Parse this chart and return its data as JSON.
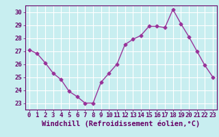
{
  "x": [
    0,
    1,
    2,
    3,
    4,
    5,
    6,
    7,
    8,
    9,
    10,
    11,
    12,
    13,
    14,
    15,
    16,
    17,
    18,
    19,
    20,
    21,
    22,
    23
  ],
  "y": [
    27.1,
    26.8,
    26.1,
    25.3,
    24.8,
    23.9,
    23.5,
    23.0,
    23.0,
    24.6,
    25.3,
    26.0,
    27.5,
    27.9,
    28.2,
    28.9,
    28.9,
    28.8,
    30.2,
    29.1,
    28.1,
    27.0,
    25.9,
    25.0
  ],
  "line_color": "#993399",
  "marker": "D",
  "marker_size": 2.5,
  "xlabel": "Windchill (Refroidissement éolien,°C)",
  "xlabel_fontsize": 7.5,
  "ylabel_ticks": [
    23,
    24,
    25,
    26,
    27,
    28,
    29,
    30
  ],
  "ylim": [
    22.5,
    30.5
  ],
  "xlim": [
    -0.5,
    23.5
  ],
  "xtick_labels": [
    "0",
    "1",
    "2",
    "3",
    "4",
    "5",
    "6",
    "7",
    "8",
    "9",
    "10",
    "11",
    "12",
    "13",
    "14",
    "15",
    "16",
    "17",
    "18",
    "19",
    "20",
    "21",
    "22",
    "23"
  ],
  "background_color": "#c8eef0",
  "grid_color": "#ffffff",
  "tick_fontsize": 6.5,
  "line_width": 1.0
}
